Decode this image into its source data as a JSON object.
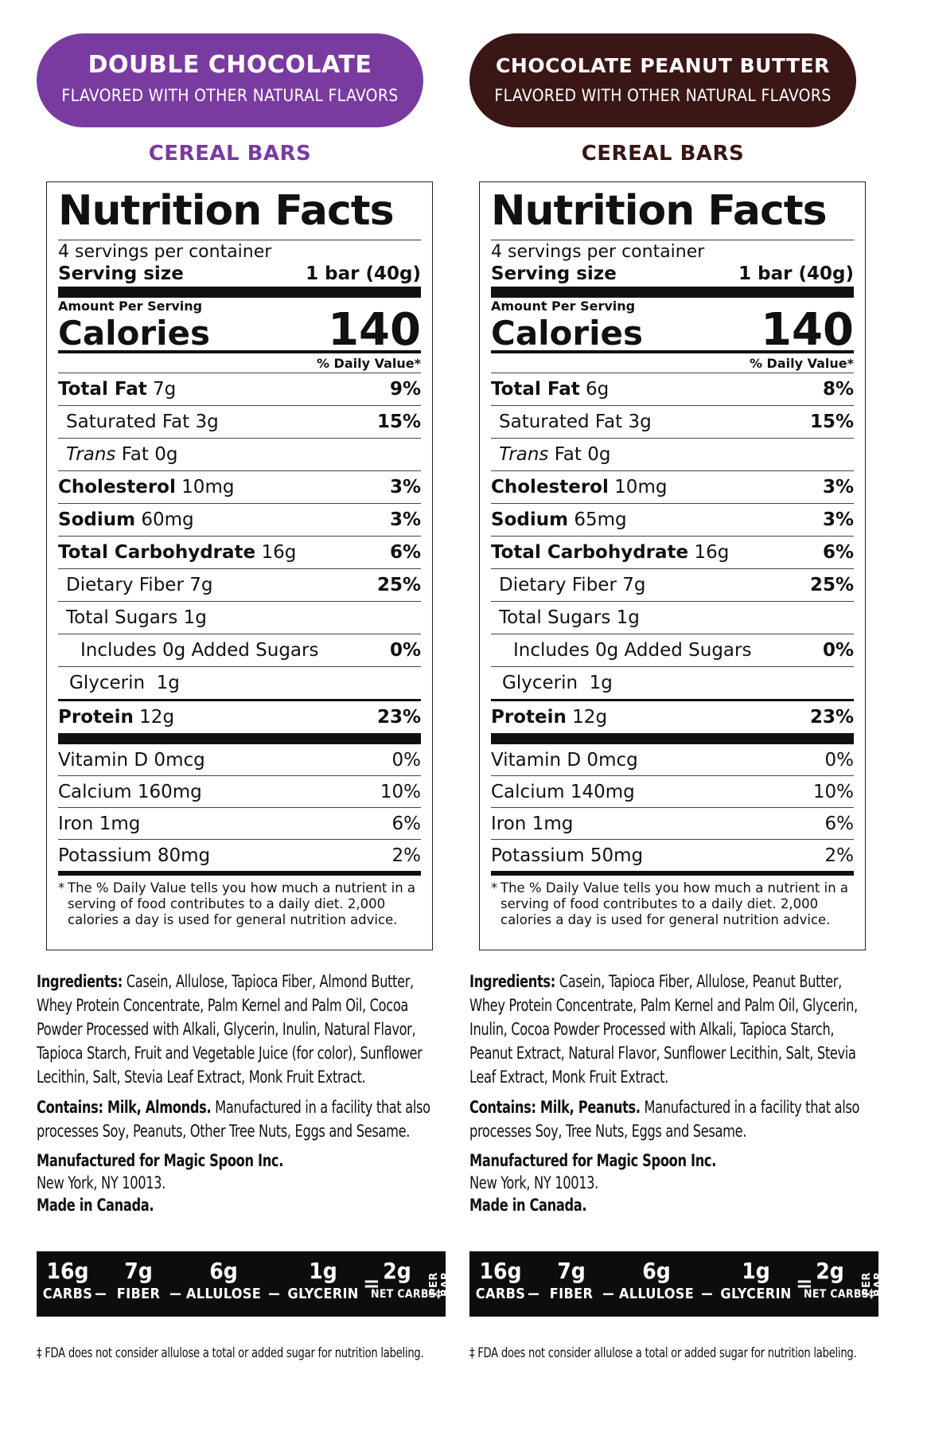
{
  "colors": {
    "double_chocolate": "#7a3ba0",
    "chocolate_peanut_butter": "#3a1614",
    "carb_bar": "#0d0d0d"
  },
  "products": [
    {
      "banner_title": "DOUBLE CHOCOLATE",
      "banner_subtitle": "FLAVORED WITH OTHER NATURAL FLAVORS",
      "category": "CEREAL BARS",
      "facts": {
        "title": "Nutrition Facts",
        "servings": "4 servings per container",
        "serving_size_label": "Serving size",
        "serving_size_value": "1 bar (40g)",
        "amount_per_serving": "Amount Per Serving",
        "calories_label": "Calories",
        "calories_value": "140",
        "dv_header": "% Daily Value*",
        "nutrients": [
          {
            "name": "Total Fat",
            "amount": "7g",
            "dv": "9%"
          },
          {
            "name": "Saturated Fat",
            "amount": "3g",
            "dv": "15%"
          },
          {
            "name": "Trans",
            "amount": "Fat 0g",
            "dv": ""
          },
          {
            "name": "Cholesterol",
            "amount": "10mg",
            "dv": "3%"
          },
          {
            "name": "Sodium",
            "amount": "60mg",
            "dv": "3%"
          },
          {
            "name": "Total Carbohydrate",
            "amount": "16g",
            "dv": "6%"
          },
          {
            "name": "Dietary Fiber",
            "amount": "7g",
            "dv": "25%"
          },
          {
            "name": "Total Sugars",
            "amount": "1g",
            "dv": ""
          },
          {
            "name": "Includes 0g Added Sugars",
            "amount": "",
            "dv": "0%"
          },
          {
            "name": "Glycerin",
            "amount": "1g",
            "dv": ""
          },
          {
            "name": "Protein",
            "amount": "12g",
            "dv": "23%"
          }
        ],
        "vitamins": [
          {
            "name": "Vitamin D 0mcg",
            "dv": "0%"
          },
          {
            "name": "Calcium 160mg",
            "dv": "10%"
          },
          {
            "name": "Iron 1mg",
            "dv": "6%"
          },
          {
            "name": "Potassium 80mg",
            "dv": "2%"
          }
        ],
        "footnote_star": "*",
        "footnote": "The % Daily Value tells you how much a nutrient in a serving of food contributes to a daily diet. 2,000 calories a day is used for general nutrition advice."
      },
      "ingredients_label": "Ingredients:",
      "ingredients": "Casein, Allulose, Tapioca Fiber, Almond Butter, Whey Protein Concentrate, Palm Kernel and Palm Oil, Cocoa Powder Processed with Alkali, Glycerin, Inulin, Natural Flavor, Tapioca Starch, Fruit and Vegetable Juice (for color), Sunflower Lecithin, Salt, Stevia Leaf Extract, Monk Fruit Extract.",
      "contains_label": "Contains: Milk, Almonds.",
      "contains": "Manufactured in a facility that also processes Soy, Peanuts, Other Tree Nuts, Eggs and Sesame.",
      "manufacturer_label": "Manufactured for Magic Spoon Inc.",
      "manufacturer_city": "New York, NY 10013.",
      "made_in": "Made in Canada.",
      "net_carbs": {
        "carbs_v": "16g",
        "carbs_n": "CARBS",
        "fiber_v": "7g",
        "fiber_n": "FIBER",
        "allulose_v": "6g",
        "allulose_n": "ALLULOSE",
        "glycerin_v": "1g",
        "glycerin_n": "GLYCERIN",
        "net_v": "2g",
        "net_n": "NET CARBS‡",
        "minus": "_",
        "equals": "=",
        "per_bar": "PER BAR"
      },
      "disclaimer": "‡ FDA does not consider allulose a total or added sugar for nutrition labeling."
    },
    {
      "banner_title": "CHOCOLATE PEANUT BUTTER",
      "banner_subtitle": "FLAVORED WITH OTHER NATURAL FLAVORS",
      "category": "CEREAL BARS",
      "facts": {
        "title": "Nutrition Facts",
        "servings": "4 servings per container",
        "serving_size_label": "Serving size",
        "serving_size_value": "1 bar (40g)",
        "amount_per_serving": "Amount Per Serving",
        "calories_label": "Calories",
        "calories_value": "140",
        "dv_header": "% Daily Value*",
        "nutrients": [
          {
            "name": "Total Fat",
            "amount": "6g",
            "dv": "8%"
          },
          {
            "name": "Saturated Fat",
            "amount": "3g",
            "dv": "15%"
          },
          {
            "name": "Trans",
            "amount": "Fat 0g",
            "dv": ""
          },
          {
            "name": "Cholesterol",
            "amount": "10mg",
            "dv": "3%"
          },
          {
            "name": "Sodium",
            "amount": "65mg",
            "dv": "3%"
          },
          {
            "name": "Total Carbohydrate",
            "amount": "16g",
            "dv": "6%"
          },
          {
            "name": "Dietary Fiber",
            "amount": "7g",
            "dv": "25%"
          },
          {
            "name": "Total Sugars",
            "amount": "1g",
            "dv": ""
          },
          {
            "name": "Includes 0g Added Sugars",
            "amount": "",
            "dv": "0%"
          },
          {
            "name": "Glycerin",
            "amount": "1g",
            "dv": ""
          },
          {
            "name": "Protein",
            "amount": "12g",
            "dv": "23%"
          }
        ],
        "vitamins": [
          {
            "name": "Vitamin D 0mcg",
            "dv": "0%"
          },
          {
            "name": "Calcium 140mg",
            "dv": "10%"
          },
          {
            "name": "Iron 1mg",
            "dv": "6%"
          },
          {
            "name": "Potassium 50mg",
            "dv": "2%"
          }
        ],
        "footnote_star": "*",
        "footnote": "The % Daily Value tells you how much a nutrient in a serving of food contributes to a daily diet. 2,000 calories a day is used for general nutrition advice."
      },
      "ingredients_label": "Ingredients:",
      "ingredients": "Casein, Tapioca Fiber, Allulose, Peanut Butter, Whey Protein Concentrate, Palm Kernel and Palm Oil, Glycerin, Inulin, Cocoa Powder Processed with Alkali, Tapioca Starch, Peanut Extract, Natural Flavor, Sunflower Lecithin, Salt, Stevia Leaf Extract, Monk Fruit Extract.",
      "contains_label": "Contains: Milk, Peanuts.",
      "contains": "Manufactured in a facility that also processes Soy, Tree Nuts, Eggs and Sesame.",
      "manufacturer_label": "Manufactured for Magic Spoon Inc.",
      "manufacturer_city": "New York, NY 10013.",
      "made_in": "Made in Canada.",
      "net_carbs": {
        "carbs_v": "16g",
        "carbs_n": "CARBS",
        "fiber_v": "7g",
        "fiber_n": "FIBER",
        "allulose_v": "6g",
        "allulose_n": "ALLULOSE",
        "glycerin_v": "1g",
        "glycerin_n": "GLYCERIN",
        "net_v": "2g",
        "net_n": "NET CARBS‡",
        "minus": "_",
        "equals": "=",
        "per_bar": "PER BAR"
      },
      "disclaimer": "‡ FDA does not consider allulose a total or added sugar for nutrition labeling."
    }
  ]
}
